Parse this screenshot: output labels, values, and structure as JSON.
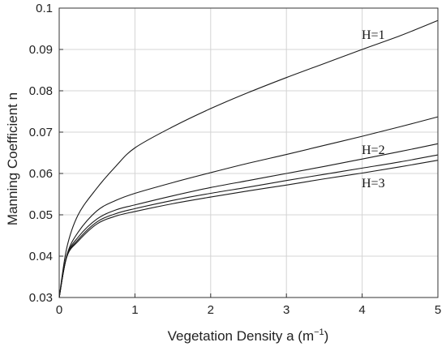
{
  "chart_data": {
    "type": "line",
    "xlabel": "Vegetation Density a (m",
    "xlabel_superscript": "−1",
    "xlabel_close": ")",
    "ylabel": "Manning Coefficient n",
    "xlim": [
      0,
      5
    ],
    "ylim": [
      0.03,
      0.1
    ],
    "x_ticks": [
      "0",
      "1",
      "2",
      "3",
      "4",
      "5"
    ],
    "y_ticks": [
      "0.03",
      "0.04",
      "0.05",
      "0.06",
      "0.07",
      "0.08",
      "0.09",
      "0.1"
    ],
    "grid": true,
    "series": [
      {
        "name": "H=1",
        "x": [
          0,
          0.1,
          0.25,
          0.5,
          0.75,
          1,
          1.5,
          2,
          2.5,
          3,
          3.5,
          4,
          4.5,
          5
        ],
        "y": [
          0.03,
          0.042,
          0.05,
          0.0565,
          0.0618,
          0.0662,
          0.0713,
          0.0757,
          0.0796,
          0.0832,
          0.0866,
          0.09,
          0.0933,
          0.097
        ]
      },
      {
        "name": "",
        "x": [
          0,
          0.1,
          0.25,
          0.5,
          0.75,
          1,
          1.5,
          2,
          2.5,
          3,
          3.5,
          4,
          4.5,
          5
        ],
        "y": [
          0.03,
          0.0402,
          0.0458,
          0.051,
          0.0535,
          0.0552,
          0.0578,
          0.0602,
          0.0625,
          0.0646,
          0.0668,
          0.069,
          0.0713,
          0.0737
        ]
      },
      {
        "name": "H=2",
        "x": [
          0,
          0.1,
          0.25,
          0.5,
          0.75,
          1,
          1.5,
          2,
          2.5,
          3,
          3.5,
          4,
          4.5,
          5
        ],
        "y": [
          0.03,
          0.04,
          0.0446,
          0.049,
          0.0512,
          0.0524,
          0.0546,
          0.0566,
          0.0583,
          0.06,
          0.0617,
          0.0635,
          0.0653,
          0.0672
        ]
      },
      {
        "name": "",
        "x": [
          0,
          0.1,
          0.25,
          0.5,
          0.75,
          1,
          1.5,
          2,
          2.5,
          3,
          3.5,
          4,
          4.5,
          5
        ],
        "y": [
          0.03,
          0.0399,
          0.044,
          0.0483,
          0.0503,
          0.0515,
          0.0535,
          0.0552,
          0.0567,
          0.0583,
          0.0598,
          0.0613,
          0.0628,
          0.0645
        ]
      },
      {
        "name": "H=3",
        "x": [
          0,
          0.1,
          0.25,
          0.5,
          0.75,
          1,
          1.5,
          2,
          2.5,
          3,
          3.5,
          4,
          4.5,
          5
        ],
        "y": [
          0.03,
          0.0398,
          0.0436,
          0.0478,
          0.0497,
          0.0508,
          0.0527,
          0.0543,
          0.0558,
          0.0572,
          0.0587,
          0.0601,
          0.0616,
          0.0632
        ]
      }
    ],
    "line_color": "#1a1a1a",
    "grid_color": "#d4d4d4",
    "axis_color": "#333333"
  }
}
